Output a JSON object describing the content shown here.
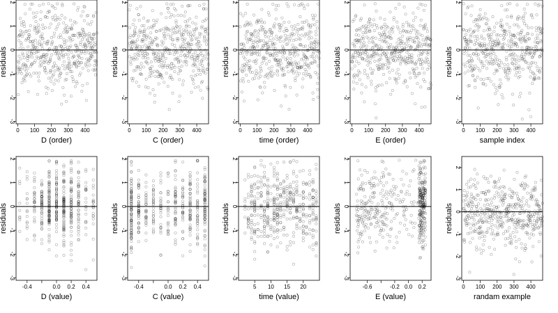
{
  "chart_data": [
    {
      "type": "scatter",
      "xlabel": "D (order)",
      "ylabel": "residuals",
      "xlim": [
        -10,
        470
      ],
      "ylim": [
        -3.1,
        2.1
      ],
      "xticks": [
        0,
        100,
        200,
        300,
        400
      ],
      "xtick_labels": [
        "0",
        "100",
        "200",
        "300",
        "400"
      ],
      "yticks": [
        -3,
        -2,
        -1,
        0,
        1,
        2
      ],
      "ytick_labels": [
        "-3",
        "-2",
        "-1",
        "0",
        "1",
        "2"
      ],
      "hline": 0,
      "gen": {
        "kind": "index",
        "n": 470,
        "seed": 11
      }
    },
    {
      "type": "scatter",
      "xlabel": "C (order)",
      "ylabel": "residuals",
      "xlim": [
        -10,
        470
      ],
      "ylim": [
        -3.1,
        2.1
      ],
      "xticks": [
        0,
        100,
        200,
        300,
        400
      ],
      "xtick_labels": [
        "0",
        "100",
        "200",
        "300",
        "400"
      ],
      "yticks": [
        -3,
        -2,
        -1,
        0,
        1,
        2
      ],
      "ytick_labels": [
        "-3",
        "-2",
        "-1",
        "0",
        "1",
        "2"
      ],
      "hline": 0,
      "gen": {
        "kind": "index",
        "n": 470,
        "seed": 23
      }
    },
    {
      "type": "scatter",
      "xlabel": "time (order)",
      "ylabel": "residuals",
      "xlim": [
        -10,
        470
      ],
      "ylim": [
        -3.1,
        2.1
      ],
      "xticks": [
        0,
        100,
        200,
        300,
        400
      ],
      "xtick_labels": [
        "0",
        "100",
        "200",
        "300",
        "400"
      ],
      "yticks": [
        -3,
        -2,
        -1,
        0,
        1,
        2
      ],
      "ytick_labels": [
        "-3",
        "-2",
        "-1",
        "0",
        "1",
        "2"
      ],
      "hline": 0,
      "gen": {
        "kind": "index",
        "n": 470,
        "seed": 37
      }
    },
    {
      "type": "scatter",
      "xlabel": "E (order)",
      "ylabel": "residuals",
      "xlim": [
        -10,
        470
      ],
      "ylim": [
        -3.1,
        2.1
      ],
      "xticks": [
        0,
        100,
        200,
        300,
        400
      ],
      "xtick_labels": [
        "0",
        "100",
        "200",
        "300",
        "400"
      ],
      "yticks": [
        -3,
        -2,
        -1,
        0,
        1,
        2
      ],
      "ytick_labels": [
        "-3",
        "-2",
        "-1",
        "0",
        "1",
        "2"
      ],
      "hline": 0,
      "gen": {
        "kind": "index",
        "n": 470,
        "seed": 41
      }
    },
    {
      "type": "scatter",
      "xlabel": "sample index",
      "ylabel": "residuals",
      "xlim": [
        -10,
        470
      ],
      "ylim": [
        -3.1,
        2.1
      ],
      "xticks": [
        0,
        100,
        200,
        300,
        400
      ],
      "xtick_labels": [
        "0",
        "100",
        "200",
        "300",
        "400"
      ],
      "yticks": [
        -3,
        -2,
        -1,
        0,
        1,
        2
      ],
      "ytick_labels": [
        "-3",
        "-2",
        "-1",
        "0",
        "1",
        "2"
      ],
      "hline": 0,
      "gen": {
        "kind": "index",
        "n": 470,
        "seed": 53
      }
    },
    {
      "type": "scatter",
      "xlabel": "D (value)",
      "ylabel": "residuals",
      "xlim": [
        -0.55,
        0.55
      ],
      "ylim": [
        -3.1,
        2.1
      ],
      "xticks": [
        -0.4,
        -0.2,
        0.0,
        0.2,
        0.4
      ],
      "xtick_labels": [
        "-0.4",
        "",
        "0.0",
        "0.2",
        "0.4"
      ],
      "yticks": [
        -3,
        -2,
        -1,
        0,
        1,
        2
      ],
      "ytick_labels": [
        "-3",
        "-2",
        "-1",
        "0",
        "1",
        "2"
      ],
      "hline": 0,
      "gen": {
        "kind": "discrete",
        "n": 470,
        "seed": 61,
        "xs": [
          -0.5,
          -0.4,
          -0.3,
          -0.2,
          -0.1,
          0,
          0.1,
          0.2,
          0.3,
          0.4,
          0.5
        ],
        "weights": [
          1,
          1,
          2,
          3,
          5,
          4,
          5,
          3,
          3,
          1,
          1
        ]
      }
    },
    {
      "type": "scatter",
      "xlabel": "C (value)",
      "ylabel": "residuals",
      "xlim": [
        -0.55,
        0.55
      ],
      "ylim": [
        -3.1,
        2.1
      ],
      "xticks": [
        -0.4,
        -0.2,
        0.0,
        0.2,
        0.4
      ],
      "xtick_labels": [
        "-0.4",
        "",
        "0.0",
        "0.2",
        "0.4"
      ],
      "yticks": [
        -3,
        -2,
        -1,
        0,
        1,
        2
      ],
      "ytick_labels": [
        "-3",
        "-2",
        "-1",
        "0",
        "1",
        "2"
      ],
      "hline": 0,
      "gen": {
        "kind": "discrete",
        "n": 470,
        "seed": 71,
        "xs": [
          -0.5,
          -0.4,
          -0.3,
          -0.2,
          -0.1,
          0,
          0.1,
          0.2,
          0.3,
          0.4,
          0.5
        ],
        "weights": [
          6,
          3,
          2,
          2,
          2,
          2,
          3,
          3,
          3,
          3,
          6
        ]
      }
    },
    {
      "type": "scatter",
      "xlabel": "time (value)",
      "ylabel": "residuals",
      "xlim": [
        0,
        25
      ],
      "ylim": [
        -3.1,
        2.1
      ],
      "xticks": [
        5,
        10,
        15,
        20
      ],
      "xtick_labels": [
        "5",
        "10",
        "15",
        "20"
      ],
      "yticks": [
        -3,
        -2,
        -1,
        0,
        1,
        2
      ],
      "ytick_labels": [
        "-3",
        "-2",
        "-1",
        "0",
        "1",
        "2"
      ],
      "hline": 0,
      "gen": {
        "kind": "discrete",
        "n": 470,
        "seed": 83,
        "xs": [
          2,
          3,
          4,
          5,
          6,
          7,
          8,
          9,
          10,
          11,
          12,
          13,
          14,
          15,
          16,
          17,
          18,
          19,
          20,
          21,
          22,
          23,
          24
        ],
        "weights": [
          1,
          2,
          3,
          4,
          2,
          2,
          3,
          4,
          2,
          3,
          4,
          3,
          2,
          2,
          3,
          4,
          3,
          2,
          3,
          2,
          2,
          2,
          3
        ]
      }
    },
    {
      "type": "scatter",
      "xlabel": "E (value)",
      "ylabel": "residuals",
      "xlim": [
        -0.85,
        0.33
      ],
      "ylim": [
        -3.1,
        2.1
      ],
      "xticks": [
        -0.6,
        -0.4,
        -0.2,
        0.0,
        0.2
      ],
      "xtick_labels": [
        "-0.6",
        "",
        "-0.2",
        "0.0",
        "0.2"
      ],
      "yticks": [
        -3,
        -2,
        -1,
        0,
        1,
        2
      ],
      "ytick_labels": [
        "-3",
        "-2",
        "-1",
        "0",
        "1",
        "2"
      ],
      "hline": 0,
      "gen": {
        "kind": "skewed",
        "n": 470,
        "seed": 97
      }
    },
    {
      "type": "scatter",
      "xlabel": "randam example",
      "ylabel": "residuals",
      "xlim": [
        -10,
        470
      ],
      "ylim": [
        -3.1,
        2.5
      ],
      "xticks": [
        0,
        100,
        200,
        300,
        400
      ],
      "xtick_labels": [
        "0",
        "100",
        "200",
        "300",
        "400"
      ],
      "yticks": [
        -3,
        -2,
        -1,
        0,
        1,
        2
      ],
      "ytick_labels": [
        "-3",
        "-2",
        "-1",
        "0",
        "1",
        "2"
      ],
      "hline": 0,
      "gen": {
        "kind": "index",
        "n": 470,
        "seed": 109
      }
    }
  ]
}
